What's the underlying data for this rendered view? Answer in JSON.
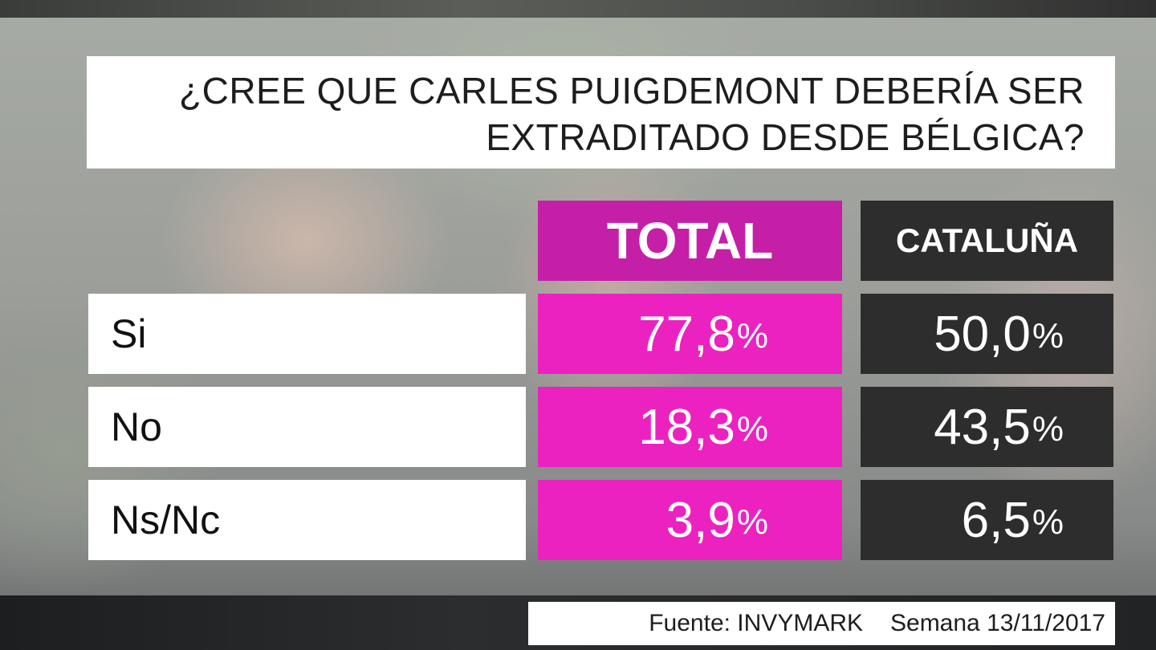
{
  "title": {
    "line1": "¿CREE QUE CARLES PUIGDEMONT DEBERÍA SER",
    "line2": "EXTRADITADO DESDE BÉLGICA?"
  },
  "colors": {
    "total_header": "#c51fa7",
    "total_cells": "#ec22c0",
    "cataluna": "#2d2d2d"
  },
  "chart_data": {
    "type": "table",
    "title": "¿CREE QUE CARLES PUIGDEMONT DEBERÍA SER EXTRADITADO DESDE BÉLGICA?",
    "columns": [
      "TOTAL",
      "CATALUÑA"
    ],
    "rows": [
      {
        "label": "Si",
        "total": "77,8",
        "cataluna": "50,0"
      },
      {
        "label": "No",
        "total": "18,3",
        "cataluna": "43,5"
      },
      {
        "label": "Ns/Nc",
        "total": "3,9",
        "cataluna": "6,5"
      }
    ],
    "unit": "%"
  },
  "footer": {
    "source": "Fuente: INVYMARK",
    "date": "Semana 13/11/2017"
  }
}
